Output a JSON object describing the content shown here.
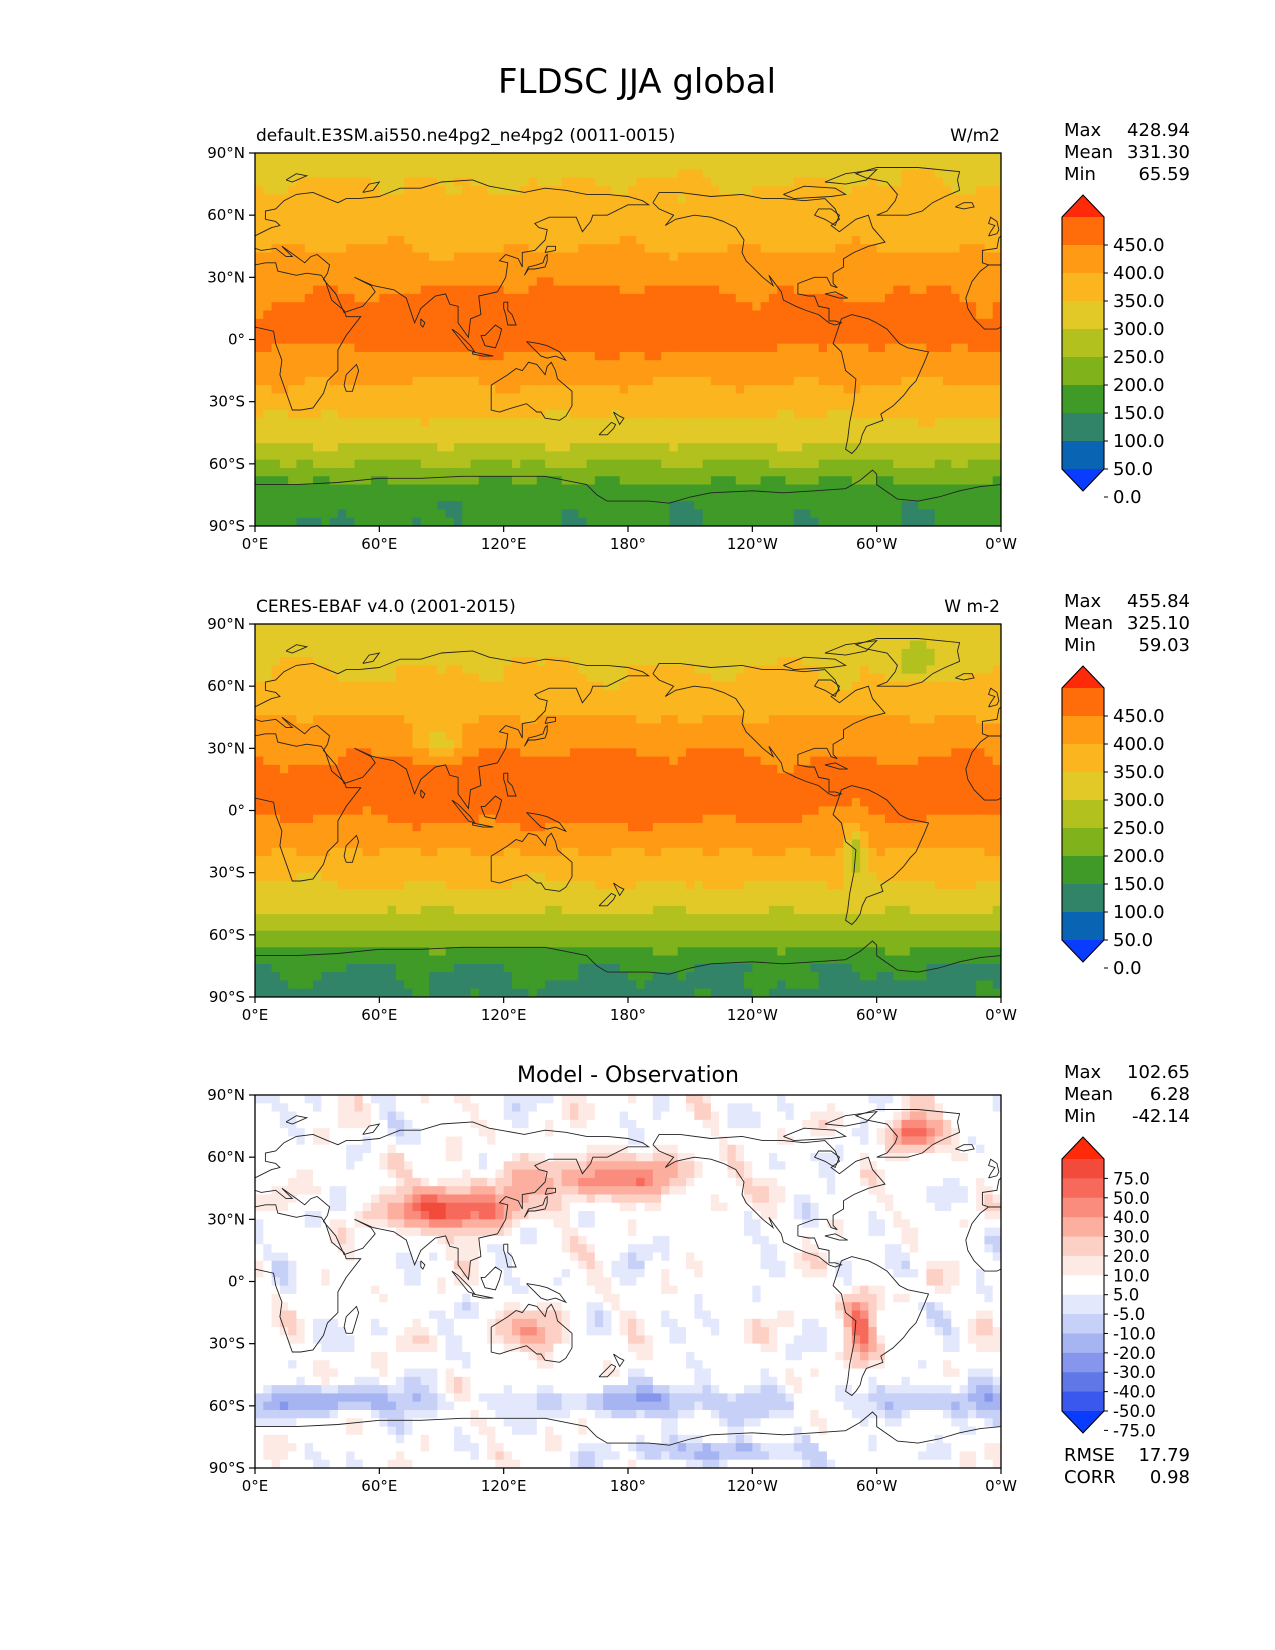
{
  "figure": {
    "title": "FLDSC JJA global"
  },
  "chart_data": [
    {
      "type": "heatmap",
      "left_title": "default.E3SM.ai550.ne4pg2_ne4pg2 (0011-0015)",
      "center_title": "",
      "units": "W/m2",
      "x_ticks": [
        "0°E",
        "60°E",
        "120°E",
        "180°",
        "120°W",
        "60°W",
        "0°W"
      ],
      "y_ticks": [
        "90°N",
        "60°N",
        "30°N",
        "0°",
        "30°S",
        "60°S",
        "90°S"
      ],
      "stats": [
        {
          "label": "Max",
          "value": "428.94"
        },
        {
          "label": "Mean",
          "value": "331.30"
        },
        {
          "label": "Min",
          "value": "65.59"
        }
      ],
      "colorbar": {
        "levels": [
          "450.0",
          "400.0",
          "350.0",
          "300.0",
          "250.0",
          "200.0",
          "150.0",
          "100.0",
          "50.0",
          "0.0"
        ],
        "colors": [
          "#ff2a0a",
          "#ff6d0a",
          "#ff9a14",
          "#fbb51f",
          "#e3c928",
          "#b3c11f",
          "#80b21c",
          "#3f9a27",
          "#328469",
          "#0a64b4",
          "#0a3cff"
        ]
      },
      "field": {
        "lat": [
          90,
          75,
          60,
          45,
          30,
          15,
          0,
          -15,
          -30,
          -45,
          -60,
          -75,
          -90
        ],
        "bands": [
          275,
          300,
          315,
          345,
          385,
          410,
          410,
          370,
          320,
          280,
          200,
          110,
          105
        ]
      }
    },
    {
      "type": "heatmap",
      "left_title": "CERES-EBAF v4.0 (2001-2015)",
      "center_title": "",
      "units": "W m-2",
      "x_ticks": [
        "0°E",
        "60°E",
        "120°E",
        "180°",
        "120°W",
        "60°W",
        "0°W"
      ],
      "y_ticks": [
        "90°N",
        "60°N",
        "30°N",
        "0°",
        "30°S",
        "60°S",
        "90°S"
      ],
      "stats": [
        {
          "label": "Max",
          "value": "455.84"
        },
        {
          "label": "Mean",
          "value": "325.10"
        },
        {
          "label": "Min",
          "value": "59.03"
        }
      ],
      "colorbar": {
        "levels": [
          "450.0",
          "400.0",
          "350.0",
          "300.0",
          "250.0",
          "200.0",
          "150.0",
          "100.0",
          "50.0",
          "0.0"
        ],
        "colors": [
          "#ff2a0a",
          "#ff6d0a",
          "#ff9a14",
          "#fbb51f",
          "#e3c928",
          "#b3c11f",
          "#80b21c",
          "#3f9a27",
          "#328469",
          "#0a64b4",
          "#0a3cff"
        ]
      },
      "field": {
        "lat": [
          90,
          75,
          60,
          45,
          30,
          15,
          0,
          -15,
          -30,
          -45,
          -60,
          -75,
          -90
        ],
        "bands": [
          260,
          290,
          310,
          350,
          390,
          415,
          410,
          365,
          315,
          270,
          190,
          100,
          95
        ]
      }
    },
    {
      "type": "heatmap",
      "left_title": "",
      "center_title": "Model - Observation",
      "units": "",
      "x_ticks": [
        "0°E",
        "60°E",
        "120°E",
        "180°",
        "120°W",
        "60°W",
        "0°W"
      ],
      "y_ticks": [
        "90°N",
        "60°N",
        "30°N",
        "0°",
        "30°S",
        "60°S",
        "90°S"
      ],
      "stats": [
        {
          "label": "Max",
          "value": "102.65"
        },
        {
          "label": "Mean",
          "value": "6.28"
        },
        {
          "label": "Min",
          "value": "-42.14"
        }
      ],
      "extra_stats": [
        {
          "label": "RMSE",
          "value": "17.79"
        },
        {
          "label": "CORR",
          "value": "0.98"
        }
      ],
      "colorbar": {
        "levels": [
          "75.0",
          "50.0",
          "40.0",
          "30.0",
          "20.0",
          "10.0",
          "5.0",
          "-5.0",
          "-10.0",
          "-20.0",
          "-30.0",
          "-40.0",
          "-50.0",
          "-75.0"
        ],
        "colors": [
          "#ff2a0a",
          "#f24a3b",
          "#f7695a",
          "#fa8c7d",
          "#fcae9f",
          "#fdd0c5",
          "#feeae5",
          "#ffffff",
          "#e4e8fc",
          "#c7d0f7",
          "#a6b4f2",
          "#8596ec",
          "#6077e8",
          "#3a57ee",
          "#0a3cff"
        ]
      }
    }
  ]
}
